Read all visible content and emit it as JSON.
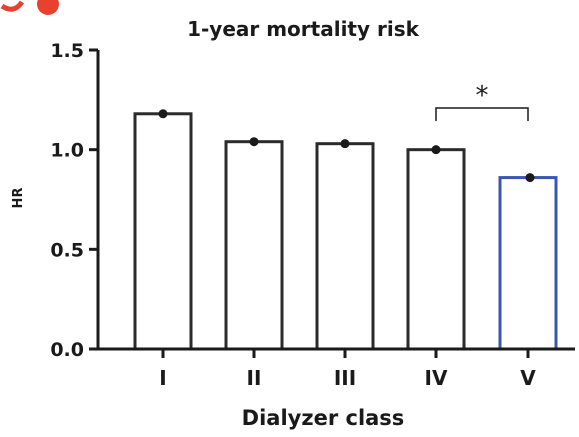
{
  "colors": {
    "axis": "#1a1a1a",
    "bar_default": "#2b2b2b",
    "bar_highlight": "#3a56b0",
    "logo": "#e8412f"
  },
  "chart_data": {
    "type": "bar",
    "title": "1-year mortality risk",
    "xlabel": "Dialyzer class",
    "ylabel": "HR",
    "categories": [
      "I",
      "II",
      "III",
      "IV",
      "V"
    ],
    "values": [
      1.18,
      1.04,
      1.03,
      1.0,
      0.86
    ],
    "highlight_index": 4,
    "ylim": [
      0,
      1.5
    ],
    "yticks": [
      "0.0",
      "0.5",
      "1.0",
      "1.5"
    ],
    "grid": false,
    "legend": "none",
    "annotation": {
      "text": "*",
      "from_category": "IV",
      "to_category": "V"
    }
  }
}
